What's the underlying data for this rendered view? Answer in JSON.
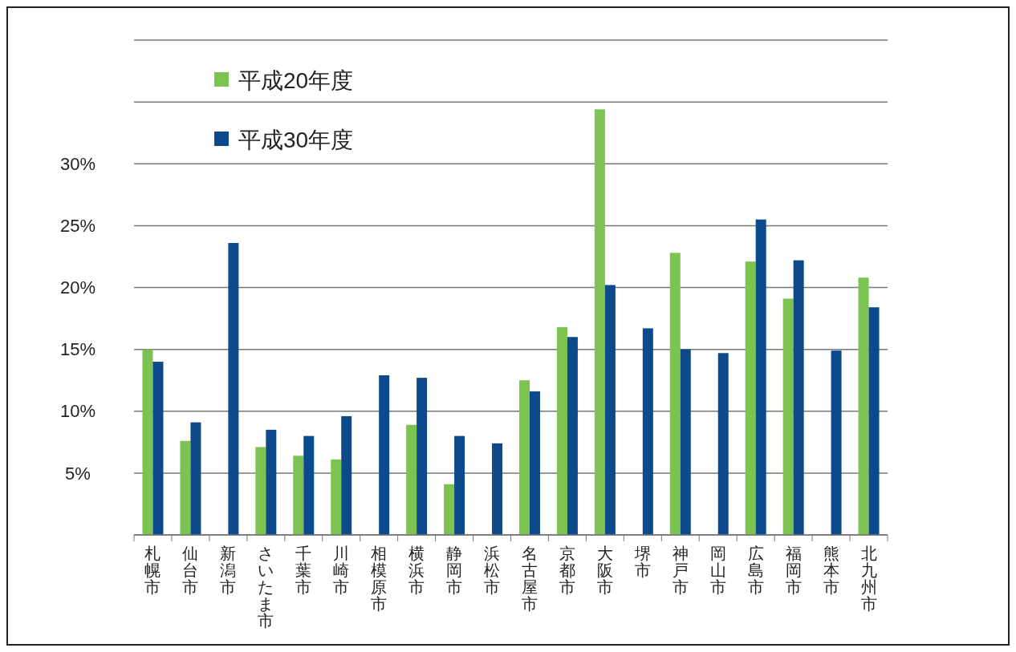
{
  "chart_data": {
    "type": "bar",
    "categories": [
      "札幌市",
      "仙台市",
      "新潟市",
      "さいたま市",
      "千葉市",
      "川崎市",
      "相模原市",
      "横浜市",
      "静岡市",
      "浜松市",
      "名古屋市",
      "京都市",
      "大阪市",
      "堺市",
      "神戸市",
      "岡山市",
      "広島市",
      "福岡市",
      "熊本市",
      "北九州市"
    ],
    "series": [
      {
        "name": "平成20年度",
        "color": "#7dc352",
        "values": [
          15.0,
          7.6,
          null,
          7.1,
          6.4,
          6.1,
          null,
          8.9,
          4.1,
          null,
          12.5,
          16.8,
          34.4,
          null,
          22.8,
          null,
          22.1,
          19.1,
          null,
          20.8
        ]
      },
      {
        "name": "平成30年度",
        "color": "#0d4a8c",
        "values": [
          14.0,
          9.1,
          23.6,
          8.5,
          8.0,
          9.6,
          12.9,
          12.7,
          8.0,
          7.4,
          11.6,
          16.0,
          20.2,
          16.7,
          15.0,
          14.7,
          25.5,
          22.2,
          14.9,
          18.4
        ]
      }
    ],
    "ylim": [
      0,
      40
    ],
    "yticks": [
      {
        "value": 0,
        "label": null
      },
      {
        "value": 5,
        "label": "5%"
      },
      {
        "value": 10,
        "label": "10%"
      },
      {
        "value": 15,
        "label": "15%"
      },
      {
        "value": 20,
        "label": "20%"
      },
      {
        "value": 25,
        "label": "25%"
      },
      {
        "value": 30,
        "label": "30%"
      },
      {
        "value": 35,
        "label": null
      },
      {
        "value": 40,
        "label": null
      }
    ],
    "grid": "y",
    "legend": "top left"
  }
}
